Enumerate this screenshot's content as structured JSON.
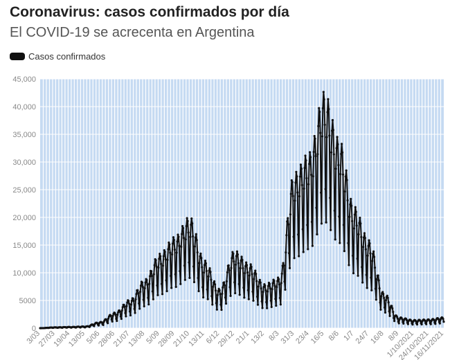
{
  "header": {
    "title": "Coronavirus: casos confirmados por día",
    "subtitle": "El COVID-19 se acrecenta en Argentina"
  },
  "legend": {
    "label": "Casos confirmados",
    "color": "#111111"
  },
  "colors": {
    "band": "#c5daf2",
    "gap": "#ffffff",
    "line": "#111111",
    "axis_text": "#888888"
  },
  "chart_data": {
    "type": "line",
    "title": "Coronavirus: casos confirmados por día",
    "subtitle": "El COVID-19 se acrecenta en Argentina",
    "xlabel": "",
    "ylabel": "",
    "ylim": [
      0,
      45000
    ],
    "yticks": [
      0,
      5000,
      10000,
      15000,
      20000,
      25000,
      30000,
      35000,
      40000,
      45000
    ],
    "ytick_labels": [
      "0",
      "5000",
      "10,000",
      "15,000",
      "20,000",
      "25,000",
      "30,000",
      "35,000",
      "40,000",
      "45,000"
    ],
    "x_tick_labels": [
      "3/03",
      "27/03",
      "19/04",
      "13/05",
      "5/06",
      "28/06",
      "21/07",
      "13/08",
      "5/09",
      "28/09",
      "21/10",
      "13/11",
      "6/12",
      "29/12",
      "21/1",
      "13/2",
      "8/3",
      "31/3",
      "23/4",
      "16/5",
      "8/6",
      "1/7",
      "24/7",
      "16/8",
      "8/9",
      "1/10/2021",
      "24/10/2021",
      "16/11/2021"
    ],
    "legend": [
      "Casos confirmados"
    ],
    "legend_position": "top-left",
    "grid": true,
    "series": [
      {
        "name": "Casos confirmados",
        "x": [
          "3/03",
          "27/03",
          "19/04",
          "13/05",
          "5/06",
          "28/06",
          "21/07",
          "13/08",
          "5/09",
          "28/09",
          "21/10",
          "13/11",
          "6/12",
          "29/12",
          "21/1",
          "13/2",
          "8/3",
          "31/3",
          "23/4",
          "16/5",
          "8/6",
          "1/7",
          "24/7",
          "16/8",
          "8/9",
          "1/10/2021",
          "24/10/2021",
          "16/11/2021"
        ],
        "values": [
          0,
          120,
          180,
          250,
          900,
          2300,
          4200,
          7200,
          11000,
          13500,
          16500,
          10000,
          5800,
          11500,
          9500,
          6500,
          7500,
          23000,
          26000,
          35000,
          28000,
          18000,
          13000,
          5200,
          1600,
          1200,
          1300,
          1600
        ]
      }
    ]
  }
}
